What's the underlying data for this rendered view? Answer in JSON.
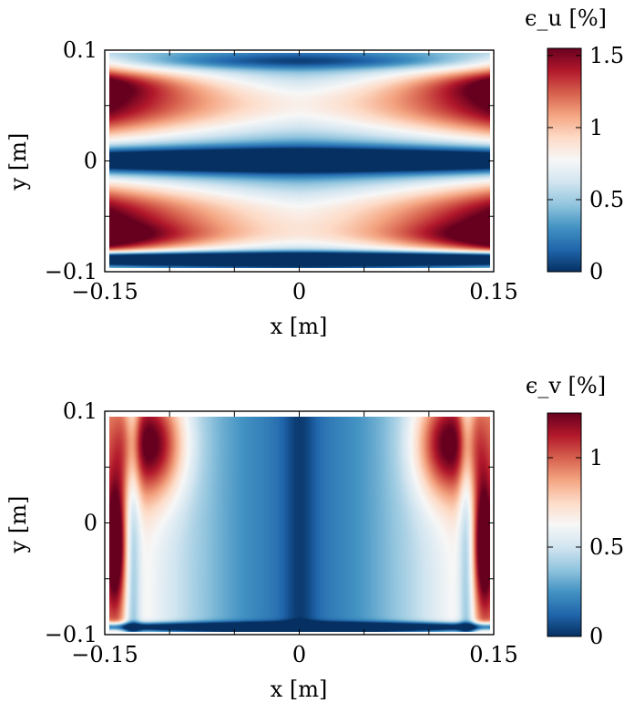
{
  "chart_data": [
    {
      "type": "heatmap",
      "quantity": "u",
      "xlabel": "x [m]",
      "ylabel": "y [m]",
      "xlim": [
        -0.15,
        0.15
      ],
      "ylim": [
        -0.1,
        0.1
      ],
      "xticks": [
        -0.15,
        0,
        0.15
      ],
      "xtick_labels": [
        "−0.15",
        "0",
        "0.15"
      ],
      "yticks": [
        -0.1,
        0,
        0.1
      ],
      "ytick_labels": [
        "−0.1",
        "0",
        "0.1"
      ],
      "colorbar": {
        "title": "ϵ_u [%]",
        "range": [
          0,
          1.55
        ],
        "ticks": [
          0,
          0.5,
          1,
          1.5
        ],
        "tick_labels": [
          "0",
          "0.5",
          "1",
          "1.5"
        ],
        "colormap": "RdBu_r"
      }
    },
    {
      "type": "heatmap",
      "quantity": "v",
      "xlabel": "x [m]",
      "ylabel": "y [m]",
      "xlim": [
        -0.15,
        0.15
      ],
      "ylim": [
        -0.1,
        0.1
      ],
      "xticks": [
        -0.15,
        0,
        0.15
      ],
      "xtick_labels": [
        "−0.15",
        "0",
        "0.15"
      ],
      "yticks": [
        -0.1,
        0,
        0.1
      ],
      "ytick_labels": [
        "−0.1",
        "0",
        "0.1"
      ],
      "colorbar": {
        "title": "ϵ_v [%]",
        "range": [
          0,
          1.25
        ],
        "ticks": [
          0,
          0.5,
          1
        ],
        "tick_labels": [
          "0",
          "0.5",
          "1"
        ],
        "colormap": "RdBu_r"
      }
    }
  ],
  "colormap_stops": [
    "#053061",
    "#2166ac",
    "#4393c3",
    "#92c5de",
    "#d1e5f0",
    "#f7f7f7",
    "#fddbc7",
    "#f4a582",
    "#d6604d",
    "#b2182b",
    "#67001f"
  ]
}
